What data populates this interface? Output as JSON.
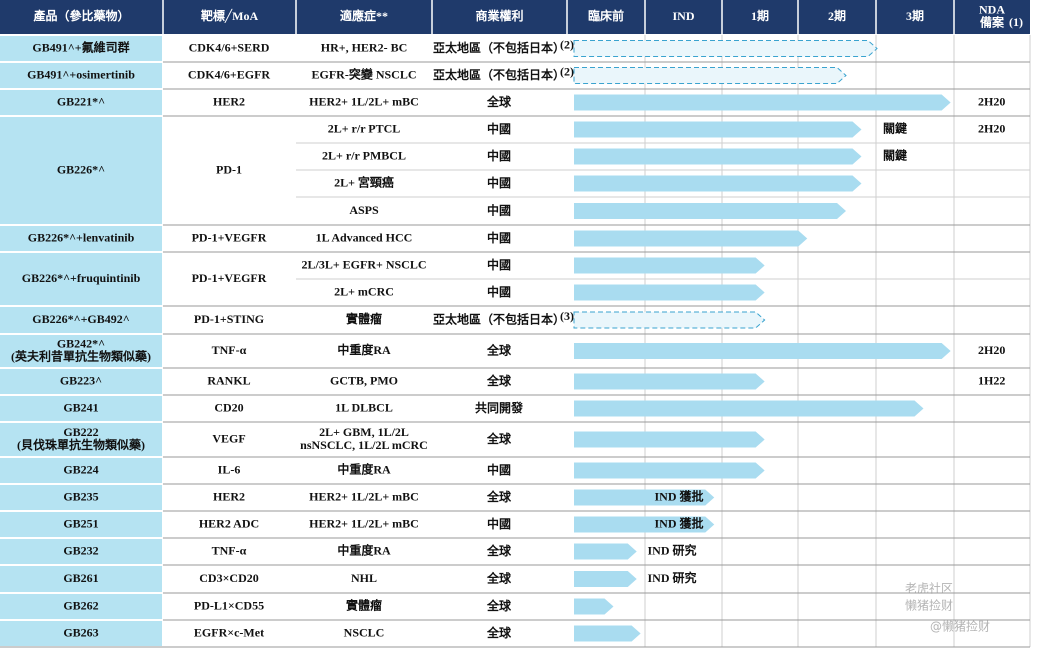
{
  "header": [
    {
      "label": "產品（參比藥物）"
    },
    {
      "label": "靶標╱MoA"
    },
    {
      "label": "適應症**"
    },
    {
      "label": "商業權利"
    },
    {
      "label": "臨床前"
    },
    {
      "label": "IND"
    },
    {
      "label": "1期"
    },
    {
      "label": "2期"
    },
    {
      "label": "3期"
    },
    {
      "label": [
        "NDA",
        "備案"
      ],
      "sup": "(1)"
    }
  ],
  "products": [
    {
      "name": "GB491^+氟維司群",
      "target": "CDK4/6+SERD",
      "rows": [
        {
          "indication": "HR+, HER2- BC",
          "rights": "亞太地區（不包括日本）",
          "rights_sup": "(2)",
          "progress": 4.0,
          "dashed": true
        }
      ]
    },
    {
      "name": "GB491^+osimertinib",
      "target": "CDK4/6+EGFR",
      "rows": [
        {
          "indication": "EGFR-突變 NSCLC",
          "rights": "亞太地區（不包括日本）",
          "rights_sup": "(2)",
          "progress": 3.6,
          "dashed": true
        }
      ]
    },
    {
      "name": "GB221*^",
      "target": "HER2",
      "rows": [
        {
          "indication": "HER2+ 1L/2L+ mBC",
          "rights": "全球",
          "progress": 4.95,
          "nda": "2H20"
        }
      ]
    },
    {
      "name": "GB226*^",
      "target": "PD-1",
      "rows": [
        {
          "indication": "2L+ r/r PTCL",
          "rights": "中國",
          "progress": 3.8,
          "note": "關鍵",
          "nda": "2H20"
        },
        {
          "indication": "2L+ r/r PMBCL",
          "rights": "中國",
          "progress": 3.8,
          "note": "關鍵"
        },
        {
          "indication": "2L+ 宮頸癌",
          "rights": "中國",
          "progress": 3.8
        },
        {
          "indication": "ASPS",
          "rights": "中國",
          "progress": 3.6
        }
      ]
    },
    {
      "name": "GB226*^+lenvatinib",
      "target": "PD-1+VEGFR",
      "rows": [
        {
          "indication": "1L Advanced HCC",
          "rights": "中國",
          "progress": 3.1
        }
      ]
    },
    {
      "name": "GB226*^+fruquintinib",
      "target": "PD-1+VEGFR",
      "rows": [
        {
          "indication": "2L/3L+ EGFR+ NSCLC",
          "rights": "中國",
          "progress": 2.55
        },
        {
          "indication": "2L+ mCRC",
          "rights": "中國",
          "progress": 2.55
        }
      ]
    },
    {
      "name": "GB226*^+GB492^",
      "target": "PD-1+STING",
      "rows": [
        {
          "indication": "實體瘤",
          "rights": "亞太地區（不包括日本）",
          "rights_sup": "(3)",
          "progress": 2.55,
          "dashed": true
        }
      ]
    },
    {
      "name": [
        "GB242*^",
        "(英夫利昔單抗生物類似藥)"
      ],
      "target": "TNF-α",
      "rows": [
        {
          "indication": "中重度RA",
          "rights": "全球",
          "progress": 4.95,
          "nda": "2H20"
        }
      ]
    },
    {
      "name": "GB223^",
      "target": "RANKL",
      "rows": [
        {
          "indication": "GCTB, PMO",
          "rights": "全球",
          "progress": 2.55,
          "nda": "1H22"
        }
      ]
    },
    {
      "name": "GB241",
      "target": "CD20",
      "rows": [
        {
          "indication": "1L DLBCL",
          "rights": "共同開發",
          "progress": 4.6
        }
      ]
    },
    {
      "name": [
        "GB222",
        "(貝伐珠單抗生物類似藥)"
      ],
      "target": "VEGF",
      "rows": [
        {
          "indication": [
            "2L+ GBM, 1L/2L",
            "nsNSCLC, 1L/2L mCRC"
          ],
          "rights": "全球",
          "progress": 2.55
        }
      ]
    },
    {
      "name": "GB224",
      "target": "IL-6",
      "rows": [
        {
          "indication": "中重度RA",
          "rights": "中國",
          "progress": 2.55
        }
      ]
    },
    {
      "name": "GB235",
      "target": "HER2",
      "rows": [
        {
          "indication": "HER2+ 1L/2L+ mBC",
          "rights": "全球",
          "progress": 1.9,
          "note": "IND 獲批"
        }
      ]
    },
    {
      "name": "GB251",
      "target": "HER2 ADC",
      "rows": [
        {
          "indication": "HER2+ 1L/2L+ mBC",
          "rights": "中國",
          "progress": 1.9,
          "note": "IND 獲批"
        }
      ]
    },
    {
      "name": "GB232",
      "target": "TNF-α",
      "rows": [
        {
          "indication": "中重度RA",
          "rights": "全球",
          "progress": 0.9,
          "note": "IND 研究"
        }
      ]
    },
    {
      "name": "GB261",
      "target": "CD3×CD20",
      "rows": [
        {
          "indication": "NHL",
          "rights": "全球",
          "progress": 0.9,
          "note": "IND 研究"
        }
      ]
    },
    {
      "name": "GB262",
      "target": "PD-L1×CD55",
      "rows": [
        {
          "indication": "實體瘤",
          "rights": "全球",
          "progress": 0.6
        }
      ]
    },
    {
      "name": "GB263",
      "target": "EGFR×c-Met",
      "rows": [
        {
          "indication": "NSCLC",
          "rights": "全球",
          "progress": 0.95
        }
      ]
    }
  ],
  "watermark": [
    "老虎社区",
    "懒猪捡财",
    "@懒猪捡财"
  ]
}
